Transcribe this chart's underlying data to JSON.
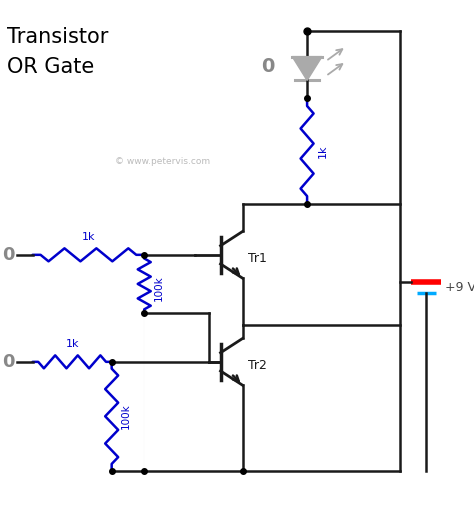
{
  "title_line1": "Transistor",
  "title_line2": "OR Gate",
  "title_color": "#000000",
  "title_fontsize": 15,
  "wire_color": "#1a1a1a",
  "resistor_color": "#0000cc",
  "bg_color": "#ffffff",
  "copyright_text": "© www.petervis.com",
  "copyright_color": "#bbbbbb",
  "supply_voltage": "+9 V",
  "supply_color": "#444444",
  "zero_color": "#888888",
  "tr1_label": "Tr1",
  "tr2_label": "Tr2",
  "diode_color": "#aaaaaa",
  "ray_color": "#aaaaaa"
}
